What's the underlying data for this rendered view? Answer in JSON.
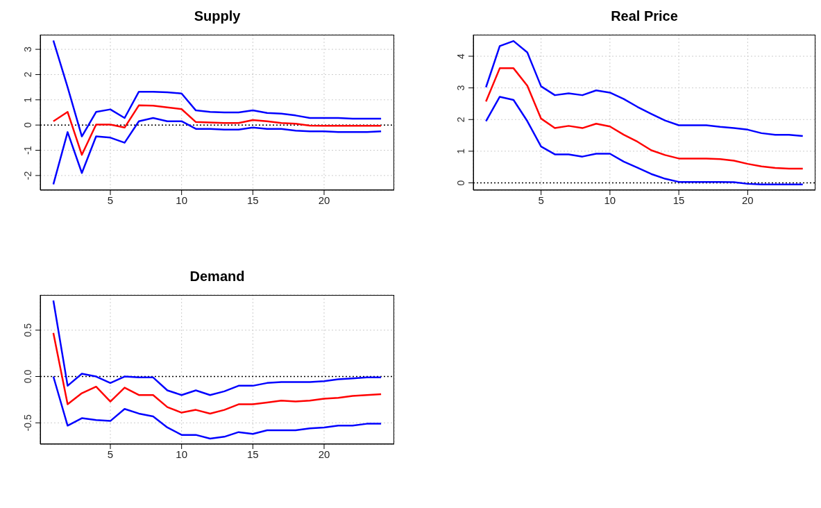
{
  "chart_data": [
    {
      "type": "line",
      "title": "Supply",
      "x": [
        1,
        2,
        3,
        4,
        5,
        6,
        7,
        8,
        9,
        10,
        11,
        12,
        13,
        14,
        15,
        16,
        17,
        18,
        19,
        20,
        21,
        22,
        23,
        24
      ],
      "series": [
        {
          "color": "#0000ff",
          "values": [
            3.35,
            1.5,
            -0.45,
            0.52,
            0.62,
            0.28,
            1.32,
            1.32,
            1.3,
            1.25,
            0.58,
            0.52,
            0.5,
            0.5,
            0.58,
            0.48,
            0.45,
            0.38,
            0.28,
            0.28,
            0.28,
            0.25,
            0.25,
            0.25
          ]
        },
        {
          "color": "#ff0000",
          "values": [
            0.15,
            0.52,
            -1.18,
            0.02,
            0.02,
            -0.1,
            0.78,
            0.77,
            0.7,
            0.63,
            0.12,
            0.1,
            0.08,
            0.08,
            0.2,
            0.15,
            0.08,
            0.05,
            -0.02,
            -0.03,
            -0.03,
            -0.03,
            -0.03,
            -0.03
          ]
        },
        {
          "color": "#0000ff",
          "values": [
            -2.35,
            -0.28,
            -1.9,
            -0.45,
            -0.5,
            -0.7,
            0.15,
            0.28,
            0.15,
            0.15,
            -0.15,
            -0.15,
            -0.18,
            -0.18,
            -0.1,
            -0.15,
            -0.15,
            -0.22,
            -0.25,
            -0.25,
            -0.28,
            -0.28,
            -0.28,
            -0.25
          ]
        }
      ],
      "xlim": [
        0.08,
        24.92
      ],
      "ylim": [
        -2.58,
        3.58
      ],
      "xticks": [
        5,
        10,
        15,
        20
      ],
      "yticks": [
        -2,
        -1,
        0,
        1,
        2,
        3
      ],
      "grid": true,
      "legend": false,
      "ref_lines": [
        {
          "axis": "y",
          "value": 0,
          "color": "#000000",
          "line_style": "dotted"
        }
      ]
    },
    {
      "type": "line",
      "title": "Real Price",
      "x": [
        1,
        2,
        3,
        4,
        5,
        6,
        7,
        8,
        9,
        10,
        11,
        12,
        13,
        14,
        15,
        16,
        17,
        18,
        19,
        20,
        21,
        22,
        23,
        24
      ],
      "series": [
        {
          "color": "#0000ff",
          "values": [
            3.02,
            4.32,
            4.48,
            4.12,
            3.05,
            2.77,
            2.83,
            2.77,
            2.92,
            2.85,
            2.65,
            2.4,
            2.18,
            1.97,
            1.82,
            1.82,
            1.82,
            1.77,
            1.73,
            1.68,
            1.57,
            1.52,
            1.52,
            1.48
          ]
        },
        {
          "color": "#ff0000",
          "values": [
            2.57,
            3.62,
            3.62,
            3.07,
            2.03,
            1.73,
            1.8,
            1.73,
            1.87,
            1.78,
            1.52,
            1.3,
            1.03,
            0.88,
            0.77,
            0.77,
            0.77,
            0.75,
            0.7,
            0.6,
            0.52,
            0.47,
            0.45,
            0.45
          ]
        },
        {
          "color": "#0000ff",
          "values": [
            1.95,
            2.72,
            2.62,
            1.95,
            1.15,
            0.9,
            0.9,
            0.83,
            0.92,
            0.92,
            0.67,
            0.48,
            0.28,
            0.13,
            0.03,
            0.03,
            0.03,
            0.03,
            0.02,
            -0.03,
            -0.05,
            -0.05,
            -0.05,
            -0.05
          ]
        }
      ],
      "xlim": [
        0.08,
        24.92
      ],
      "ylim": [
        -0.23,
        4.68
      ],
      "xticks": [
        5,
        10,
        15,
        20
      ],
      "yticks": [
        0,
        1,
        2,
        3,
        4
      ],
      "grid": true,
      "legend": false,
      "ref_lines": [
        {
          "axis": "y",
          "value": 0,
          "color": "#000000",
          "line_style": "dotted"
        }
      ]
    },
    {
      "type": "line",
      "title": "Demand",
      "x": [
        1,
        2,
        3,
        4,
        5,
        6,
        7,
        8,
        9,
        10,
        11,
        12,
        13,
        14,
        15,
        16,
        17,
        18,
        19,
        20,
        21,
        22,
        23,
        24
      ],
      "series": [
        {
          "color": "#0000ff",
          "values": [
            0.82,
            -0.1,
            0.03,
            0.0,
            -0.07,
            0.0,
            -0.01,
            -0.01,
            -0.15,
            -0.2,
            -0.15,
            -0.2,
            -0.16,
            -0.1,
            -0.1,
            -0.07,
            -0.06,
            -0.06,
            -0.06,
            -0.05,
            -0.03,
            -0.02,
            -0.01,
            -0.01
          ]
        },
        {
          "color": "#ff0000",
          "values": [
            0.47,
            -0.3,
            -0.18,
            -0.11,
            -0.27,
            -0.12,
            -0.2,
            -0.2,
            -0.33,
            -0.39,
            -0.36,
            -0.4,
            -0.36,
            -0.3,
            -0.3,
            -0.28,
            -0.26,
            -0.27,
            -0.26,
            -0.24,
            -0.23,
            -0.21,
            -0.2,
            -0.19
          ]
        },
        {
          "color": "#0000ff",
          "values": [
            0.0,
            -0.53,
            -0.45,
            -0.47,
            -0.48,
            -0.35,
            -0.4,
            -0.43,
            -0.55,
            -0.63,
            -0.63,
            -0.67,
            -0.65,
            -0.6,
            -0.62,
            -0.58,
            -0.58,
            -0.58,
            -0.56,
            -0.55,
            -0.53,
            -0.53,
            -0.51,
            -0.51
          ]
        }
      ],
      "xlim": [
        0.08,
        24.92
      ],
      "ylim": [
        -0.73,
        0.88
      ],
      "xticks": [
        5,
        10,
        15,
        20
      ],
      "yticks": [
        {
          "value": -0.5,
          "label": "-0.5"
        },
        {
          "value": 0,
          "label": "0.0"
        },
        {
          "value": 0.5,
          "label": "0.5"
        }
      ],
      "grid": true,
      "legend": false,
      "ref_lines": [
        {
          "axis": "y",
          "value": 0,
          "color": "#000000",
          "line_style": "dotted"
        }
      ]
    }
  ]
}
